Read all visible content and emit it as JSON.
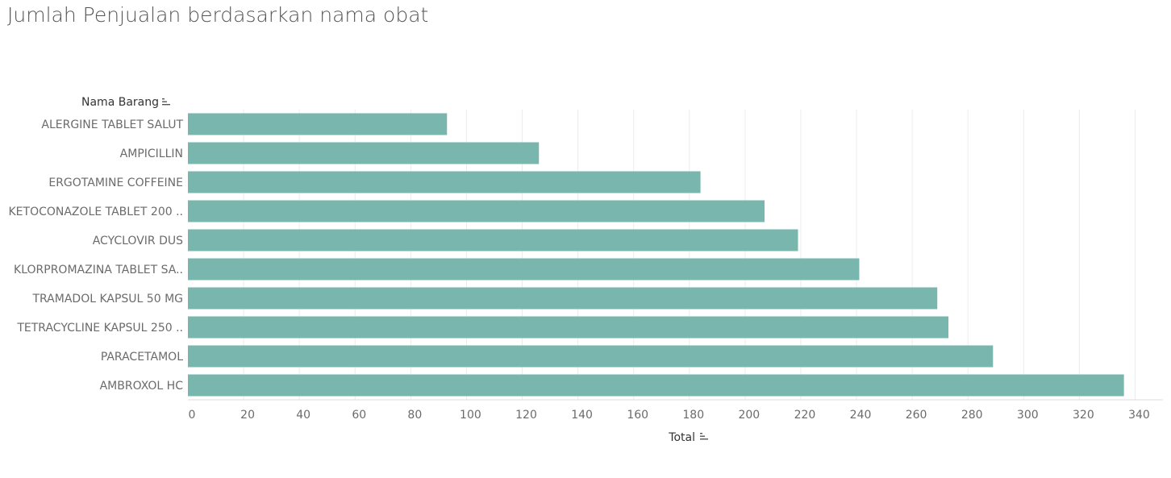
{
  "title": "Jumlah Penjualan berdasarkan nama obat",
  "colors": {
    "bar": "#79b6ae",
    "grid": "#ececec",
    "axis": "#dcdcdc"
  },
  "chart_data": {
    "type": "bar",
    "orientation": "horizontal",
    "title": "Jumlah Penjualan berdasarkan nama obat",
    "xlabel": "Total",
    "ylabel": "Nama Barang",
    "categories": [
      "ALERGINE TABLET SALUT",
      "AMPICILLIN",
      "ERGOTAMINE COFFEINE",
      "KETOCONAZOLE TABLET 200 ..",
      "ACYCLOVIR DUS",
      "KLORPROMAZINA TABLET SA..",
      "TRAMADOL KAPSUL 50 MG",
      "TETRACYCLINE KAPSUL 250 ..",
      "PARACETAMOL",
      "AMBROXOL HC"
    ],
    "values": [
      93,
      126,
      184,
      207,
      219,
      241,
      269,
      273,
      289,
      336
    ],
    "xlim": [
      0,
      350
    ],
    "xticks": [
      0,
      20,
      40,
      60,
      80,
      100,
      120,
      140,
      160,
      180,
      200,
      220,
      240,
      260,
      280,
      300,
      320,
      340
    ],
    "grid": true,
    "sort_icons": true
  }
}
